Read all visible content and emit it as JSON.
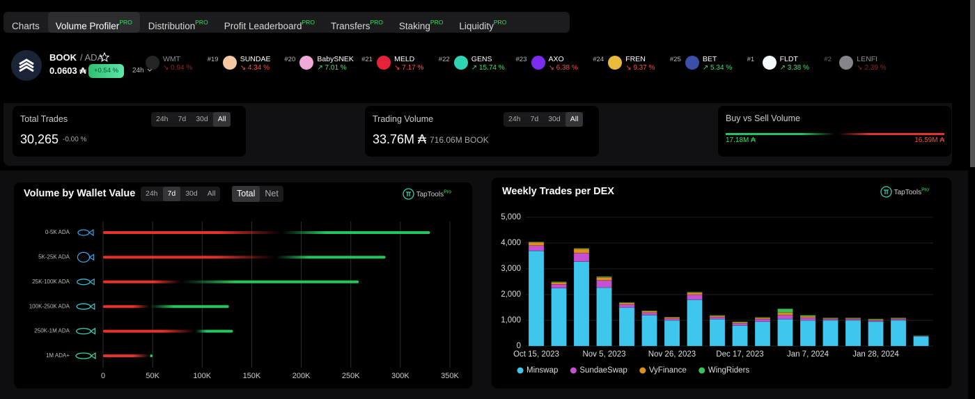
{
  "tabs": [
    {
      "label": "Charts"
    },
    {
      "label": "Volume Profiler",
      "badge": "PRO"
    },
    {
      "label": "Distribution",
      "badge": "PRO"
    },
    {
      "label": "Profit Leaderboard",
      "badge": "PRO"
    },
    {
      "label": "Transfers",
      "badge": "PRO"
    },
    {
      "label": "Staking",
      "badge": "PRO"
    },
    {
      "label": "Liquidity",
      "badge": "PRO"
    }
  ],
  "active_tab": 1,
  "token": {
    "symbol": "BOOK",
    "pair": "/ ADA",
    "price": "0.0603 ₳",
    "change": "+0.54 %",
    "period": "24h"
  },
  "ticker": [
    {
      "symbol": "WMT",
      "change": "↘ 0.94 %",
      "direction": "down",
      "color": "#444444"
    },
    {
      "rank": "#19",
      "symbol": "SUNDAE",
      "change": "↘ 4.34 %",
      "direction": "down",
      "color": "#f2c9a0"
    },
    {
      "rank": "#20",
      "symbol": "BabySNEK",
      "change": "↗ 7.01 %",
      "direction": "up",
      "color": "#f0a8d8"
    },
    {
      "rank": "#21",
      "symbol": "MELD",
      "change": "↘ 7.17 %",
      "direction": "down",
      "color": "#e8213a"
    },
    {
      "rank": "#22",
      "symbol": "GENS",
      "change": "↗ 15.74 %",
      "direction": "up",
      "color": "#2fd3b4"
    },
    {
      "rank": "#23",
      "symbol": "AXO",
      "change": "↘ 6.38 %",
      "direction": "down",
      "color": "#7b2cf0"
    },
    {
      "rank": "#24",
      "symbol": "FREN",
      "change": "↘ 9.37 %",
      "direction": "down",
      "color": "#e8b93a"
    },
    {
      "rank": "#25",
      "symbol": "BET",
      "change": "↗ 5.34 %",
      "direction": "up",
      "color": "#3a4fa8"
    },
    {
      "rank": "#1",
      "symbol": "FLDT",
      "change": "↗ 3.38 %",
      "direction": "up",
      "color": "#f4f8fb"
    },
    {
      "rank": "#2",
      "symbol": "LENFI",
      "change": "↘ 2.39 %",
      "direction": "down",
      "color": "#f4f4fb"
    }
  ],
  "stats": {
    "total_trades": {
      "title": "Total Trades",
      "value": "30,265",
      "change": "-0.00 %",
      "periods": [
        "24h",
        "7d",
        "30d",
        "All"
      ],
      "active_period": 3
    },
    "trading_volume": {
      "title": "Trading Volume",
      "value": "33.76M ₳",
      "secondary": "716.06M BOOK",
      "periods": [
        "24h",
        "7d",
        "30d",
        "All"
      ],
      "active_period": 3
    },
    "buy_sell": {
      "title": "Buy vs Sell Volume",
      "buy": "17.18M ₳",
      "sell": "16.59M ₳"
    }
  },
  "chart_data": [
    {
      "type": "hbar",
      "title": "Volume by Wallet Value",
      "periods": [
        "24h",
        "7d",
        "30d",
        "All"
      ],
      "active_period": 1,
      "modes": [
        "Total",
        "Net"
      ],
      "active_mode": 0,
      "brand": "TapTools",
      "brand_badge": "Pro",
      "categories": [
        "0-5K ADA",
        "5K-25K ADA",
        "25K-100K ADA",
        "100K-250K ADA",
        "250K-1M ADA",
        "1M ADA+"
      ],
      "series": [
        {
          "color": "#e5332a",
          "values": [
            180000,
            174000,
            79000,
            47000,
            93000,
            47000
          ]
        },
        {
          "color": "#22c55e",
          "values": [
            150000,
            111000,
            179000,
            80000,
            38000,
            3000
          ]
        }
      ],
      "xlim": [
        0,
        350000
      ],
      "xticks": [
        0,
        {
          "value": 50000,
          "label": "50K"
        },
        {
          "value": 100000,
          "label": "100K"
        },
        {
          "value": 150000,
          "label": "150K"
        },
        {
          "value": 200000,
          "label": "200K"
        },
        {
          "value": 250000,
          "label": "250K"
        },
        {
          "value": 300000,
          "label": "300K"
        },
        {
          "value": 350000,
          "label": "350K"
        }
      ],
      "grid": true
    },
    {
      "type": "stacked_bar",
      "title": "Weekly Trades per DEX",
      "brand": "TapTools",
      "brand_badge": "Pro",
      "categories": [
        "Oct 15, 2023",
        null,
        null,
        "Nov 5, 2023",
        null,
        null,
        "Nov 26, 2023",
        null,
        null,
        "Dec 17, 2023",
        null,
        null,
        "Jan 7, 2024",
        null,
        null,
        "Jan 28, 2024",
        null,
        null
      ],
      "series": [
        {
          "name": "Minswap",
          "color": "#3ec6ec",
          "values": [
            3700,
            2250,
            3280,
            2270,
            1500,
            1200,
            1000,
            1800,
            1050,
            800,
            950,
            1050,
            1000,
            1000,
            1000,
            950,
            1000,
            380
          ]
        },
        {
          "name": "SundaeSwap",
          "color": "#c64fd4",
          "values": [
            200,
            150,
            330,
            280,
            120,
            100,
            70,
            200,
            80,
            80,
            100,
            150,
            100,
            50,
            50,
            50,
            50,
            20
          ]
        },
        {
          "name": "VyFinance",
          "color": "#de9119",
          "values": [
            130,
            80,
            170,
            120,
            60,
            60,
            50,
            80,
            50,
            50,
            50,
            100,
            60,
            30,
            30,
            30,
            30,
            10
          ]
        },
        {
          "name": "WingRiders",
          "color": "#3cbf58",
          "values": [
            20,
            20,
            20,
            30,
            20,
            20,
            10,
            20,
            20,
            20,
            20,
            150,
            40,
            20,
            20,
            30,
            20,
            10
          ]
        }
      ],
      "ylim": [
        0,
        5000
      ],
      "yticks": [
        0,
        {
          "value": 1000,
          "label": "1,000"
        },
        {
          "value": 2000,
          "label": "2,000"
        },
        {
          "value": 3000,
          "label": "3,000"
        },
        {
          "value": 4000,
          "label": "4,000"
        },
        {
          "value": 5000,
          "label": "5,000"
        }
      ],
      "grid": true
    }
  ]
}
